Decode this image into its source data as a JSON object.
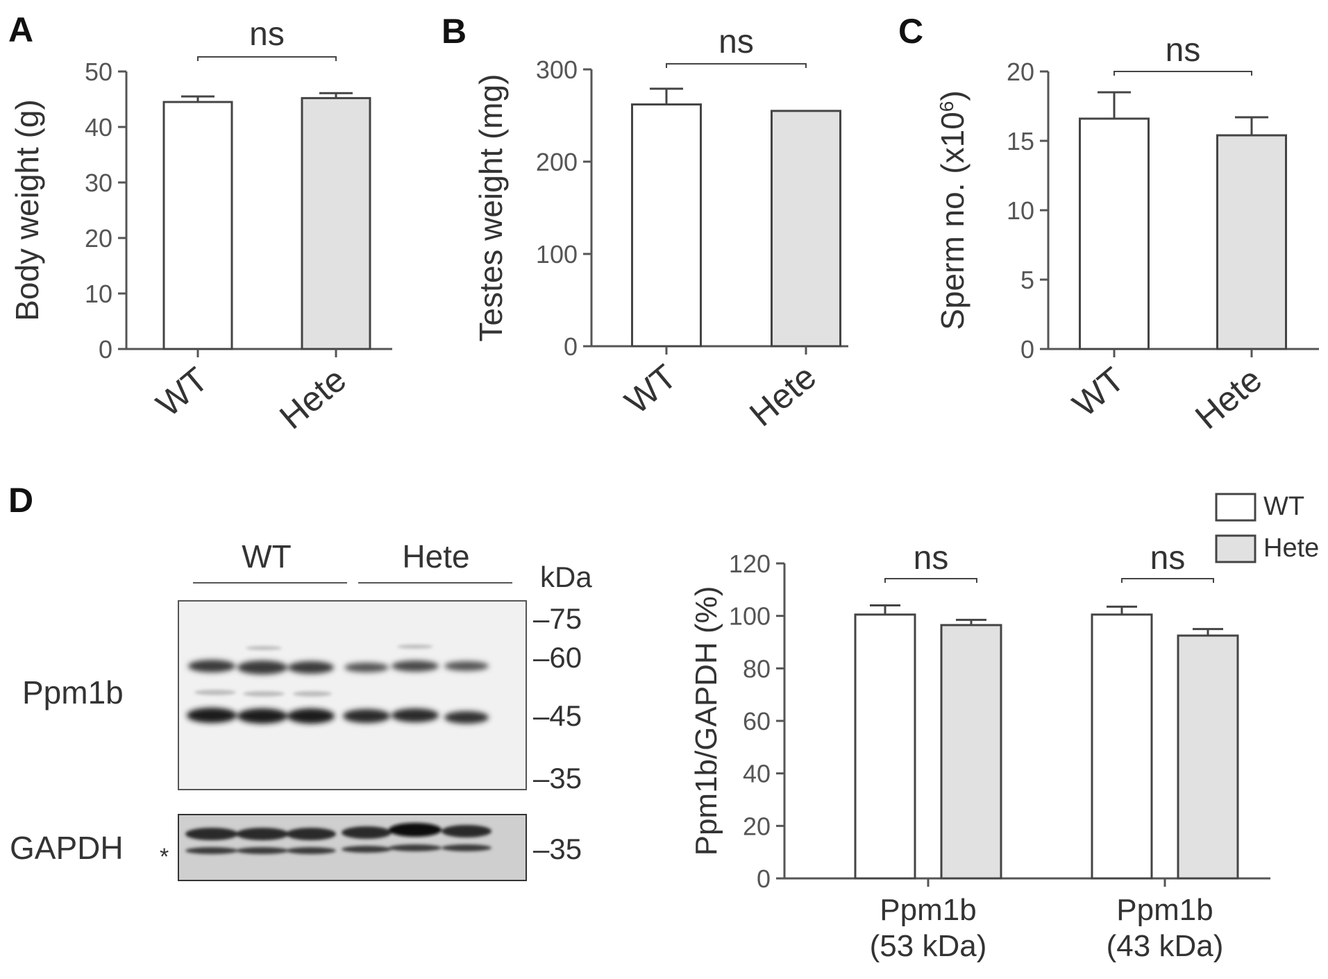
{
  "panels": {
    "A": "A",
    "B": "B",
    "C": "C",
    "D": "D"
  },
  "colors": {
    "wt_fill": "#ffffff",
    "hete_fill": "#e1e1e1",
    "axis": "#555555",
    "text": "#333333",
    "panel_label": "#111111"
  },
  "chart_data": [
    {
      "panel": "A",
      "type": "bar",
      "categories": [
        "WT",
        "Hete"
      ],
      "values": [
        44.5,
        45.2
      ],
      "errors": [
        1.0,
        0.9
      ],
      "ylabel": "Body weight (g)",
      "ylim": [
        0,
        50
      ],
      "yticks": [
        0,
        10,
        20,
        30,
        40,
        50
      ],
      "significance": "ns",
      "grid": false
    },
    {
      "panel": "B",
      "type": "bar",
      "categories": [
        "WT",
        "Hete"
      ],
      "values": [
        262,
        255
      ],
      "errors": [
        17,
        0
      ],
      "ylabel": "Testes weight (mg)",
      "ylim": [
        0,
        300
      ],
      "yticks": [
        0,
        100,
        200,
        300
      ],
      "significance": "ns",
      "grid": false
    },
    {
      "panel": "C",
      "type": "bar",
      "categories": [
        "WT",
        "Hete"
      ],
      "values": [
        16.6,
        15.4
      ],
      "errors": [
        1.9,
        1.3
      ],
      "ylabel": "Sperm no. (x10",
      "ylabel_sup": "6",
      "ylabel_end": ")",
      "ylim": [
        0,
        20
      ],
      "yticks": [
        0,
        5,
        10,
        15,
        20
      ],
      "significance": "ns",
      "grid": false
    },
    {
      "panel": "D",
      "type": "bar",
      "categories": [
        "Ppm1b\n(53 kDa)",
        "Ppm1b\n(43 kDa)"
      ],
      "category_lines": [
        [
          "Ppm1b",
          "(53 kDa)"
        ],
        [
          "Ppm1b",
          "(43 kDa)"
        ]
      ],
      "series": [
        {
          "name": "WT",
          "values": [
            100.5,
            100.5
          ],
          "errors": [
            3.5,
            3.0
          ]
        },
        {
          "name": "Hete",
          "values": [
            96.5,
            92.5
          ],
          "errors": [
            2.0,
            2.5
          ]
        }
      ],
      "ylabel": "Ppm1b/GAPDH (%)",
      "ylim": [
        0,
        120
      ],
      "yticks": [
        0,
        20,
        40,
        60,
        80,
        100,
        120
      ],
      "significance": [
        "ns",
        "ns"
      ],
      "legend": "top-right",
      "grid": false
    }
  ],
  "blot": {
    "group_labels": [
      "WT",
      "Hete"
    ],
    "unit": "kDa",
    "main_markers": [
      "75",
      "60",
      "45",
      "35"
    ],
    "main_label": "Ppm1b",
    "gapdh_label": "GAPDH",
    "gapdh_asterisk": "*",
    "gapdh_marker": "35"
  }
}
